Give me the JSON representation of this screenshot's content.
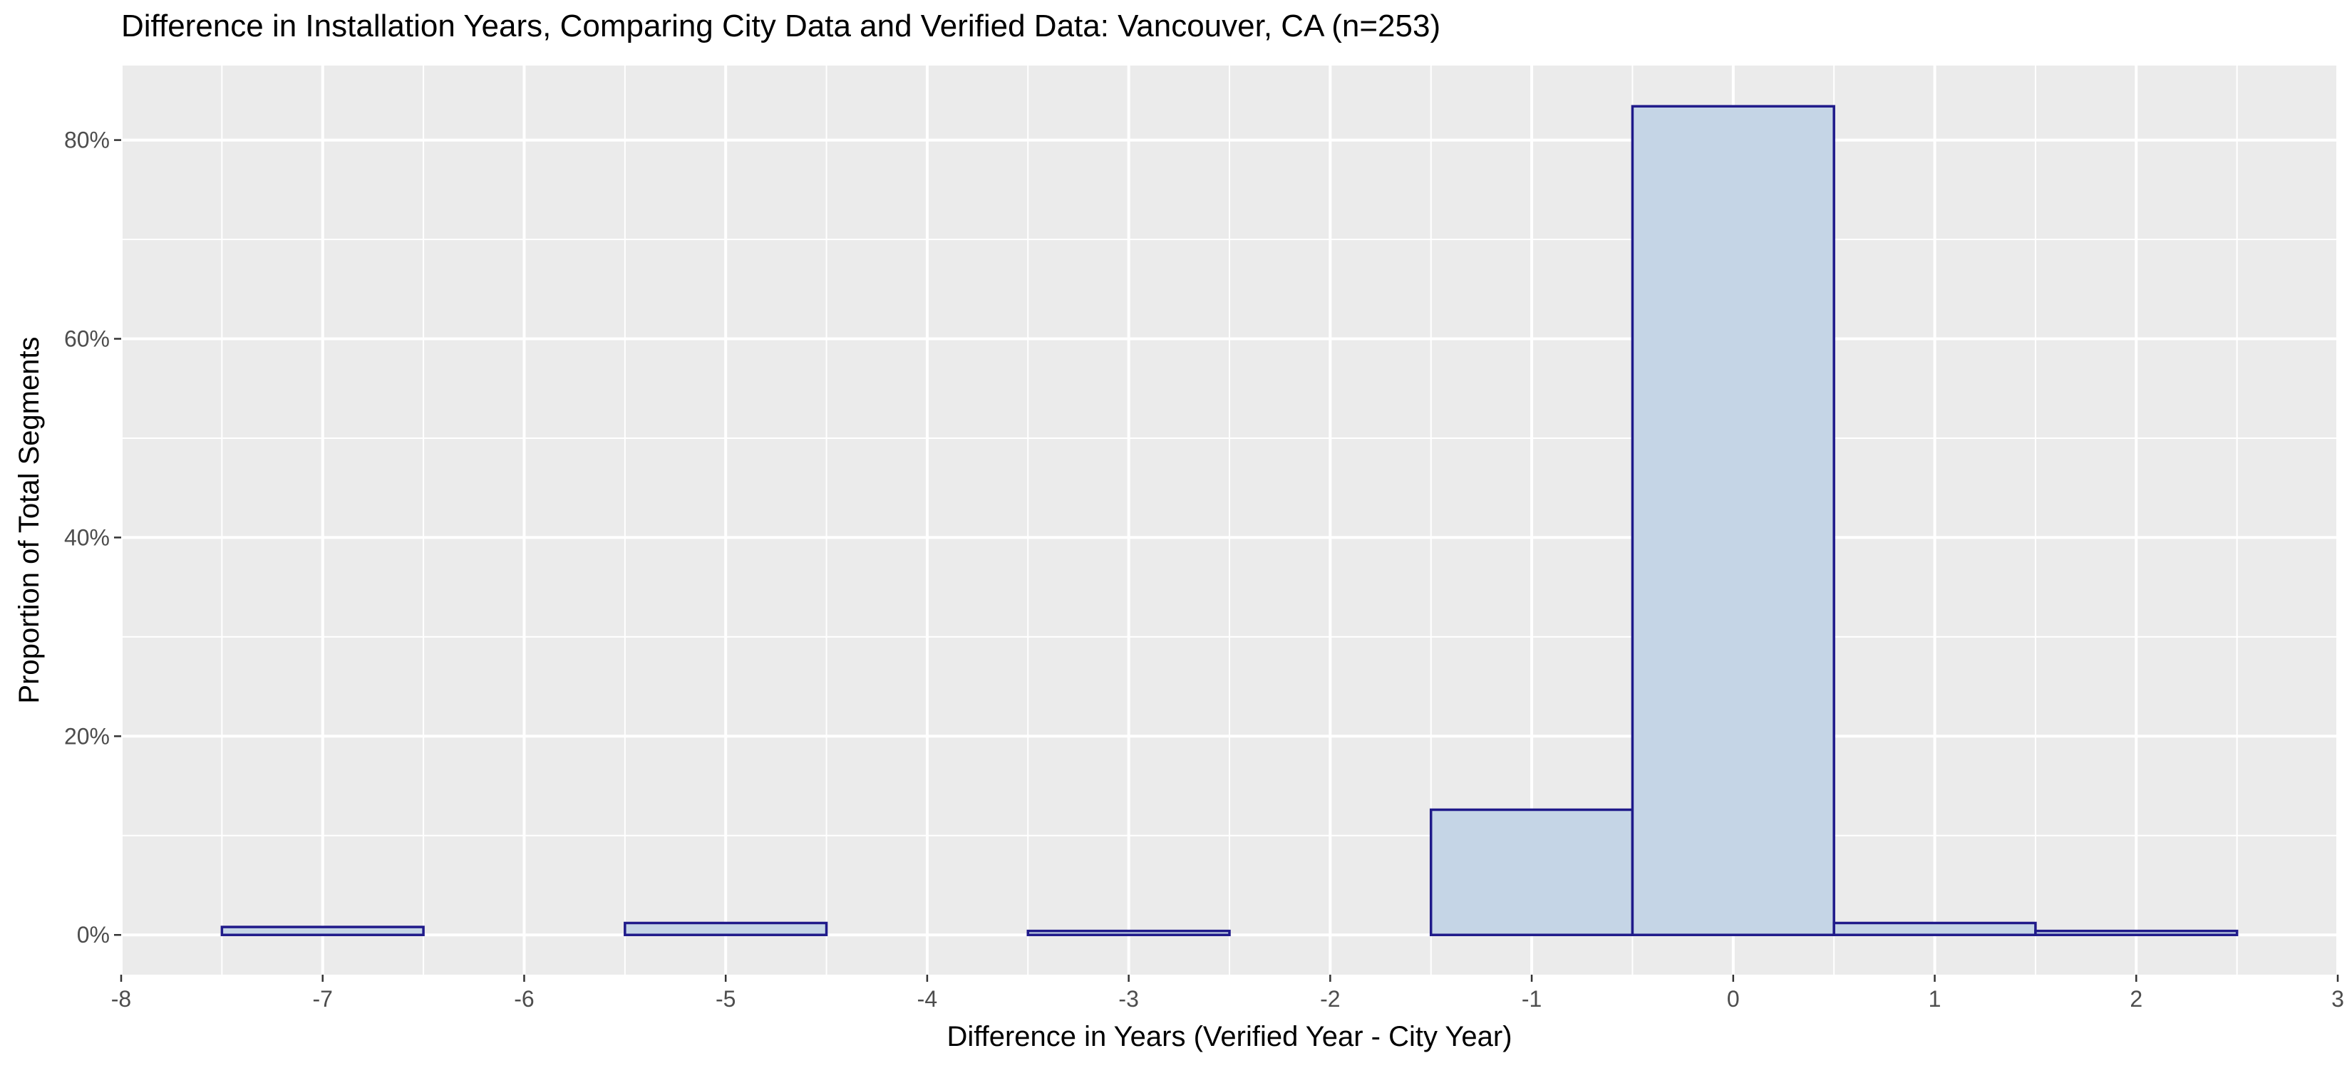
{
  "chart_data": {
    "type": "bar",
    "title": "Difference in Installation Years, Comparing City Data and Verified Data: Vancouver, CA (n=253)",
    "xlabel": "Difference in Years (Verified Year - City Year)",
    "ylabel": "Proportion of Total Segments",
    "xlim": [
      -8,
      3
    ],
    "ylim": [
      -4,
      87.5
    ],
    "x_ticks": [
      -8,
      -7,
      -6,
      -5,
      -4,
      -3,
      -2,
      -1,
      0,
      1,
      2,
      3
    ],
    "x_tick_labels": [
      "-8",
      "-7",
      "-6",
      "-5",
      "-4",
      "-3",
      "-2",
      "-1",
      "0",
      "1",
      "2",
      "3"
    ],
    "y_ticks": [
      0,
      20,
      40,
      60,
      80
    ],
    "y_tick_labels": [
      "0%",
      "20%",
      "40%",
      "60%",
      "80%"
    ],
    "bin_width": 1,
    "bins": [
      {
        "x": -7,
        "value": 0.8
      },
      {
        "x": -5,
        "value": 1.2
      },
      {
        "x": -3,
        "value": 0.4
      },
      {
        "x": -1,
        "value": 12.6
      },
      {
        "x": 0,
        "value": 83.4
      },
      {
        "x": 1,
        "value": 1.2
      },
      {
        "x": 2,
        "value": 0.4
      }
    ],
    "grid": true,
    "colors": {
      "panel_background": "#ebebeb",
      "grid": "#ffffff",
      "bar_fill": "#c5d5e6",
      "bar_stroke": "#1f1a8a"
    }
  }
}
